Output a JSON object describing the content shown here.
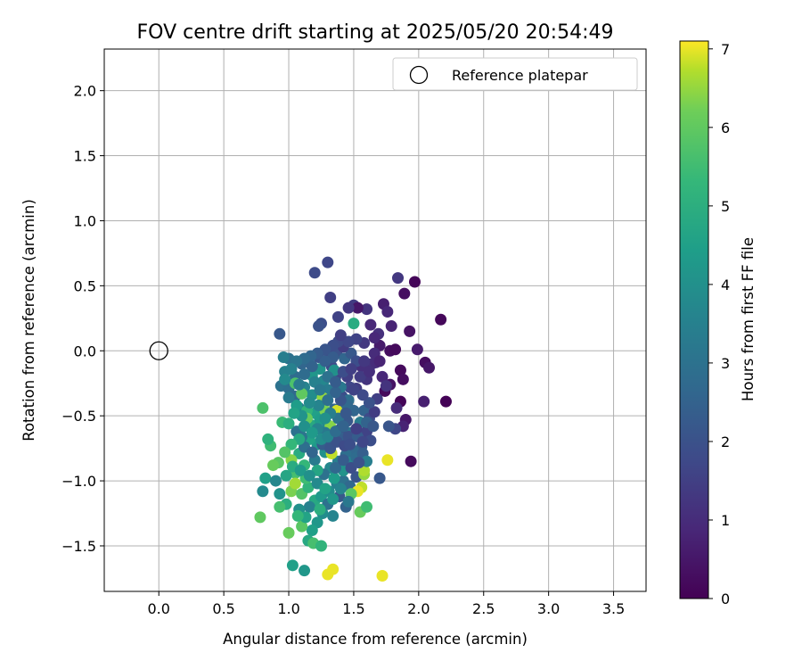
{
  "chart_data": {
    "type": "scatter",
    "title": "FOV centre drift starting at 2025/05/20 20:54:49",
    "xlabel": "Angular distance from reference (arcmin)",
    "ylabel": "Rotation from reference (arcmin)",
    "xlim": [
      -0.42,
      3.75
    ],
    "ylim": [
      -1.85,
      2.32
    ],
    "xticks": [
      0.0,
      0.5,
      1.0,
      1.5,
      2.0,
      2.5,
      3.0,
      3.5
    ],
    "xtick_labels": [
      "0.0",
      "0.5",
      "1.0",
      "1.5",
      "2.0",
      "2.5",
      "3.0",
      "3.5"
    ],
    "yticks": [
      -1.5,
      -1.0,
      -0.5,
      0.0,
      0.5,
      1.0,
      1.5,
      2.0
    ],
    "ytick_labels": [
      "−1.5",
      "−1.0",
      "−0.5",
      "0.0",
      "0.5",
      "1.0",
      "1.5",
      "2.0"
    ],
    "grid": true,
    "legend": {
      "placement": "top-right",
      "entries": [
        "Reference platepar"
      ]
    },
    "reference_point": {
      "name": "Reference platepar",
      "x": 0.0,
      "y": 0.0
    },
    "colorbar": {
      "label": "Hours from first FF file",
      "colormap": "viridis",
      "range": [
        0,
        7.1
      ],
      "ticks": [
        0,
        1,
        2,
        3,
        4,
        5,
        6,
        7
      ],
      "tick_labels": [
        "0",
        "1",
        "2",
        "3",
        "4",
        "5",
        "6",
        "7"
      ]
    },
    "points": [
      [
        1.97,
        0.53,
        0.1
      ],
      [
        2.17,
        0.24,
        0.15
      ],
      [
        2.21,
        -0.39,
        0.05
      ],
      [
        1.94,
        -0.85,
        0.2
      ],
      [
        1.86,
        -0.15,
        0.2
      ],
      [
        1.88,
        -0.22,
        0.3
      ],
      [
        1.86,
        -0.39,
        0.1
      ],
      [
        1.89,
        0.44,
        0.3
      ],
      [
        1.93,
        0.15,
        0.4
      ],
      [
        1.99,
        0.01,
        0.6
      ],
      [
        2.05,
        -0.09,
        0.3
      ],
      [
        2.08,
        -0.13,
        0.5
      ],
      [
        2.04,
        -0.39,
        0.7
      ],
      [
        1.9,
        -0.53,
        0.5
      ],
      [
        1.88,
        -0.58,
        0.8
      ],
      [
        1.83,
        -0.44,
        1.0
      ],
      [
        1.78,
        -0.26,
        0.4
      ],
      [
        1.74,
        -0.31,
        0.2
      ],
      [
        1.72,
        -0.2,
        0.9
      ],
      [
        1.78,
        0.0,
        0.3
      ],
      [
        1.82,
        0.01,
        0.2
      ],
      [
        1.7,
        0.04,
        0.6
      ],
      [
        1.73,
        0.36,
        0.7
      ],
      [
        1.76,
        0.3,
        0.9
      ],
      [
        1.84,
        0.56,
        1.3
      ],
      [
        1.79,
        0.19,
        0.8
      ],
      [
        1.69,
        0.13,
        1.1
      ],
      [
        1.63,
        0.2,
        0.9
      ],
      [
        1.6,
        0.32,
        1.2
      ],
      [
        1.5,
        0.35,
        1.4
      ],
      [
        1.53,
        0.33,
        0.5
      ],
      [
        1.46,
        0.33,
        1.3
      ],
      [
        1.38,
        0.26,
        1.6
      ],
      [
        1.32,
        0.41,
        1.5
      ],
      [
        1.3,
        0.68,
        1.7
      ],
      [
        1.2,
        0.6,
        1.8
      ],
      [
        1.25,
        0.21,
        1.9
      ],
      [
        1.23,
        0.19,
        2.0
      ],
      [
        0.93,
        0.13,
        2.2
      ],
      [
        1.5,
        0.21,
        4.9
      ],
      [
        1.56,
        -0.12,
        1.1
      ],
      [
        1.64,
        -0.1,
        1.2
      ],
      [
        1.67,
        -0.09,
        1.0
      ],
      [
        1.6,
        -0.22,
        1.2
      ],
      [
        1.52,
        -0.29,
        1.4
      ],
      [
        1.47,
        -0.28,
        1.7
      ],
      [
        1.41,
        -0.35,
        1.9
      ],
      [
        1.45,
        -0.2,
        1.5
      ],
      [
        1.36,
        -0.2,
        1.6
      ],
      [
        1.33,
        -0.12,
        1.8
      ],
      [
        1.37,
        -0.02,
        2.0
      ],
      [
        1.3,
        0.0,
        1.7
      ],
      [
        1.23,
        -0.05,
        2.1
      ],
      [
        1.15,
        -0.08,
        2.3
      ],
      [
        1.1,
        -0.1,
        2.6
      ],
      [
        1.05,
        -0.2,
        2.8
      ],
      [
        1.0,
        -0.06,
        3.0
      ],
      [
        0.96,
        -0.05,
        3.4
      ],
      [
        0.97,
        -0.16,
        3.5
      ],
      [
        0.94,
        -0.27,
        3.0
      ],
      [
        1.0,
        -0.29,
        2.9
      ],
      [
        1.05,
        -0.35,
        2.7
      ],
      [
        1.08,
        -0.44,
        3.2
      ],
      [
        1.12,
        -0.28,
        3.6
      ],
      [
        1.18,
        -0.34,
        3.9
      ],
      [
        1.18,
        -0.19,
        4.2
      ],
      [
        1.24,
        -0.14,
        4.1
      ],
      [
        1.27,
        -0.23,
        3.7
      ],
      [
        1.3,
        -0.3,
        3.3
      ],
      [
        1.26,
        -0.43,
        3.0
      ],
      [
        1.2,
        -0.48,
        4.5
      ],
      [
        1.14,
        -0.46,
        5.2
      ],
      [
        1.17,
        -0.57,
        4.8
      ],
      [
        1.24,
        -0.53,
        4.4
      ],
      [
        1.3,
        -0.57,
        3.8
      ],
      [
        1.35,
        -0.45,
        2.6
      ],
      [
        1.41,
        -0.44,
        2.4
      ],
      [
        1.45,
        -0.54,
        2.2
      ],
      [
        1.4,
        -0.6,
        2.0
      ],
      [
        1.48,
        -0.63,
        3.1
      ],
      [
        1.55,
        -0.55,
        3.3
      ],
      [
        1.58,
        -0.46,
        2.5
      ],
      [
        1.62,
        -0.52,
        1.8
      ],
      [
        1.66,
        -0.47,
        1.4
      ],
      [
        1.6,
        -0.62,
        1.6
      ],
      [
        1.56,
        -0.74,
        2.3
      ],
      [
        1.5,
        -0.77,
        2.7
      ],
      [
        1.44,
        -0.8,
        2.9
      ],
      [
        1.38,
        -0.85,
        3.4
      ],
      [
        1.32,
        -0.9,
        3.7
      ],
      [
        1.28,
        -0.78,
        4.0
      ],
      [
        1.22,
        -0.72,
        4.3
      ],
      [
        1.16,
        -0.68,
        4.6
      ],
      [
        1.1,
        -0.66,
        3.1
      ],
      [
        1.08,
        -0.79,
        4.9
      ],
      [
        1.12,
        -0.88,
        5.3
      ],
      [
        1.05,
        -0.94,
        5.6
      ],
      [
        0.98,
        -0.96,
        4.7
      ],
      [
        0.92,
        -0.86,
        5.9
      ],
      [
        0.86,
        -0.73,
        5.5
      ],
      [
        0.84,
        -0.68,
        5.1
      ],
      [
        0.8,
        -0.44,
        5.7
      ],
      [
        0.95,
        -0.55,
        5.4
      ],
      [
        0.88,
        -0.88,
        6.1
      ],
      [
        0.82,
        -0.98,
        4.5
      ],
      [
        0.8,
        -1.08,
        3.8
      ],
      [
        0.93,
        -1.1,
        4.1
      ],
      [
        0.98,
        -1.18,
        5.0
      ],
      [
        0.93,
        -1.2,
        5.6
      ],
      [
        0.78,
        -1.28,
        6.0
      ],
      [
        1.02,
        -1.08,
        6.3
      ],
      [
        1.05,
        -1.02,
        6.6
      ],
      [
        1.1,
        -1.1,
        5.8
      ],
      [
        1.15,
        -1.05,
        5.2
      ],
      [
        1.2,
        -1.15,
        4.8
      ],
      [
        1.25,
        -1.12,
        4.3
      ],
      [
        1.31,
        -1.08,
        3.9
      ],
      [
        1.37,
        -1.02,
        3.5
      ],
      [
        1.42,
        -1.0,
        3.0
      ],
      [
        1.47,
        -1.04,
        2.7
      ],
      [
        1.52,
        -0.97,
        2.1
      ],
      [
        1.56,
        -1.05,
        6.8
      ],
      [
        1.53,
        -1.08,
        7.0
      ],
      [
        1.58,
        -0.95,
        6.5
      ],
      [
        1.55,
        -1.24,
        6.1
      ],
      [
        1.6,
        -1.2,
        5.5
      ],
      [
        1.48,
        -1.1,
        5.9
      ],
      [
        1.44,
        -1.2,
        2.5
      ],
      [
        1.34,
        -1.27,
        3.6
      ],
      [
        1.26,
        -1.25,
        3.9
      ],
      [
        1.22,
        -1.32,
        4.2
      ],
      [
        1.18,
        -1.38,
        4.5
      ],
      [
        1.15,
        -1.46,
        4.8
      ],
      [
        1.19,
        -1.48,
        5.6
      ],
      [
        1.25,
        -1.5,
        5.2
      ],
      [
        1.1,
        -1.35,
        5.9
      ],
      [
        1.0,
        -1.4,
        6.1
      ],
      [
        1.03,
        -1.65,
        4.5
      ],
      [
        1.12,
        -1.69,
        4.2
      ],
      [
        1.3,
        -1.72,
        7.0
      ],
      [
        1.34,
        -1.68,
        7.0
      ],
      [
        1.72,
        -1.73,
        7.0
      ],
      [
        1.76,
        -0.84,
        7.0
      ],
      [
        1.33,
        -0.79,
        6.8
      ],
      [
        1.26,
        -0.36,
        6.5
      ],
      [
        1.28,
        -0.46,
        6.3
      ],
      [
        1.37,
        -0.46,
        6.9
      ],
      [
        1.32,
        -0.58,
        6.4
      ],
      [
        1.1,
        -0.33,
        6.0
      ],
      [
        1.05,
        -0.25,
        5.7
      ],
      [
        1.58,
        -0.92,
        6.7
      ],
      [
        1.7,
        -0.98,
        2.2
      ],
      [
        1.63,
        -0.69,
        1.9
      ],
      [
        1.68,
        -0.37,
        1.5
      ],
      [
        1.75,
        -0.27,
        1.2
      ],
      [
        1.82,
        -0.6,
        1.7
      ],
      [
        1.77,
        -0.58,
        2.1
      ],
      [
        1.43,
        -0.06,
        2.6
      ],
      [
        1.48,
        -0.02,
        2.2
      ],
      [
        1.52,
        -0.08,
        1.9
      ],
      [
        1.42,
        0.03,
        1.4
      ],
      [
        1.38,
        0.07,
        1.8
      ],
      [
        1.34,
        -0.05,
        2.3
      ],
      [
        1.28,
        -0.08,
        2.4
      ],
      [
        1.18,
        -0.12,
        2.5
      ],
      [
        1.12,
        -0.18,
        2.8
      ],
      [
        1.08,
        -0.26,
        3.3
      ],
      [
        1.2,
        -0.24,
        3.5
      ],
      [
        1.35,
        -0.15,
        4.0
      ],
      [
        1.4,
        -0.28,
        3.2
      ],
      [
        1.46,
        -0.38,
        2.9
      ],
      [
        1.5,
        -0.46,
        2.6
      ],
      [
        1.4,
        -0.67,
        2.4
      ],
      [
        1.34,
        -0.69,
        2.8
      ],
      [
        1.28,
        -0.63,
        3.2
      ],
      [
        1.22,
        -0.6,
        3.6
      ],
      [
        1.2,
        -0.84,
        3.3
      ],
      [
        1.27,
        -0.95,
        3.0
      ],
      [
        1.35,
        -0.98,
        4.4
      ],
      [
        1.42,
        -0.92,
        4.1
      ],
      [
        1.47,
        -0.86,
        3.6
      ],
      [
        1.52,
        -0.82,
        2.8
      ],
      [
        1.57,
        -0.79,
        2.4
      ],
      [
        1.6,
        -0.85,
        3.4
      ],
      [
        1.39,
        -1.12,
        2.2
      ],
      [
        1.3,
        -1.18,
        3.0
      ],
      [
        1.16,
        -1.2,
        3.5
      ],
      [
        1.08,
        -1.22,
        4.0
      ],
      [
        1.13,
        -1.28,
        4.6
      ],
      [
        1.07,
        -1.27,
        5.3
      ],
      [
        1.24,
        -1.22,
        5.0
      ],
      [
        1.14,
        -0.52,
        6.1
      ],
      [
        1.02,
        -0.84,
        6.4
      ],
      [
        0.9,
        -1.0,
        3.7
      ],
      [
        1.13,
        -0.98,
        5.5
      ],
      [
        1.22,
        -0.92,
        4.7
      ],
      [
        1.06,
        -0.62,
        3.0
      ],
      [
        1.12,
        -0.74,
        2.9
      ],
      [
        1.18,
        -0.78,
        2.6
      ],
      [
        1.26,
        -0.72,
        2.3
      ],
      [
        1.32,
        -0.75,
        2.1
      ],
      [
        1.37,
        -0.7,
        2.0
      ],
      [
        1.43,
        -0.73,
        1.8
      ],
      [
        1.46,
        -0.66,
        2.0
      ],
      [
        1.53,
        -0.66,
        2.3
      ],
      [
        1.6,
        -0.55,
        2.5
      ],
      [
        1.65,
        -0.58,
        2.2
      ],
      [
        1.62,
        -0.4,
        2.0
      ],
      [
        1.57,
        -0.34,
        1.8
      ],
      [
        1.5,
        -0.3,
        1.6
      ],
      [
        1.45,
        -0.42,
        2.7
      ],
      [
        1.38,
        -0.52,
        3.0
      ],
      [
        1.32,
        -0.48,
        3.4
      ],
      [
        1.28,
        -0.52,
        4.0
      ],
      [
        1.23,
        -0.42,
        3.6
      ],
      [
        1.16,
        -0.4,
        3.8
      ],
      [
        1.1,
        -0.5,
        4.1
      ],
      [
        1.06,
        -0.42,
        4.4
      ],
      [
        1.12,
        -0.58,
        4.0
      ],
      [
        1.18,
        -0.63,
        4.3
      ],
      [
        1.25,
        -0.68,
        3.9
      ],
      [
        1.3,
        -0.66,
        3.6
      ],
      [
        1.36,
        -0.62,
        2.8
      ],
      [
        1.42,
        -0.58,
        2.5
      ],
      [
        1.44,
        -0.48,
        2.2
      ],
      [
        1.4,
        -0.38,
        2.1
      ],
      [
        1.36,
        -0.32,
        2.5
      ],
      [
        1.3,
        -0.38,
        2.9
      ],
      [
        1.24,
        -0.3,
        3.2
      ],
      [
        1.3,
        -0.2,
        3.0
      ],
      [
        1.36,
        -0.24,
        2.3
      ],
      [
        1.42,
        -0.16,
        1.9
      ],
      [
        1.48,
        -0.14,
        1.5
      ],
      [
        1.55,
        -0.2,
        1.4
      ],
      [
        1.58,
        -0.08,
        1.3
      ],
      [
        1.62,
        -0.16,
        1.1
      ],
      [
        1.66,
        -0.02,
        1.0
      ],
      [
        1.7,
        -0.08,
        0.8
      ],
      [
        1.66,
        0.1,
        0.9
      ],
      [
        1.58,
        0.06,
        1.3
      ],
      [
        1.52,
        0.09,
        1.6
      ],
      [
        1.46,
        0.07,
        1.7
      ],
      [
        1.4,
        0.12,
        1.5
      ],
      [
        1.34,
        0.04,
        1.9
      ],
      [
        1.28,
        0.01,
        2.1
      ],
      [
        1.22,
        -0.02,
        2.3
      ],
      [
        1.17,
        -0.04,
        2.6
      ],
      [
        1.12,
        -0.06,
        2.8
      ],
      [
        1.06,
        -0.08,
        3.1
      ],
      [
        1.02,
        -0.14,
        3.5
      ],
      [
        0.97,
        -0.22,
        3.8
      ],
      [
        1.0,
        -0.36,
        3.3
      ],
      [
        1.04,
        -0.48,
        4.6
      ],
      [
        1.0,
        -0.56,
        5.0
      ],
      [
        1.08,
        -0.68,
        4.8
      ],
      [
        1.02,
        -0.72,
        5.3
      ],
      [
        0.97,
        -0.78,
        5.8
      ],
      [
        1.03,
        -0.89,
        4.9
      ],
      [
        1.09,
        -0.92,
        4.3
      ],
      [
        1.16,
        -0.96,
        4.0
      ],
      [
        1.22,
        -1.02,
        3.8
      ],
      [
        1.28,
        -1.06,
        4.6
      ],
      [
        1.34,
        -1.14,
        4.2
      ],
      [
        1.4,
        -1.06,
        3.6
      ],
      [
        1.46,
        -1.16,
        3.2
      ],
      [
        1.36,
        -0.9,
        2.7
      ],
      [
        1.42,
        -0.84,
        2.3
      ],
      [
        1.48,
        -0.9,
        1.9
      ],
      [
        1.54,
        -0.86,
        2.0
      ],
      [
        1.57,
        -0.7,
        1.7
      ],
      [
        1.52,
        -0.6,
        1.5
      ],
      [
        1.47,
        -0.72,
        1.9
      ]
    ]
  }
}
